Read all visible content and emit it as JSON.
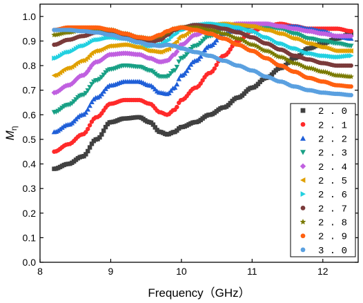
{
  "chart_data": {
    "type": "scatter",
    "title": "",
    "xlabel": "Frequency（GHz）",
    "ylabel_main": "M",
    "ylabel_sub": "η",
    "xlim": [
      8,
      12.5
    ],
    "ylim": [
      0,
      1.05
    ],
    "x_ticks": [
      "8",
      "9",
      "10",
      "11",
      "12"
    ],
    "y_ticks": [
      "0.0",
      "0.1",
      "0.2",
      "0.3",
      "0.4",
      "0.5",
      "0.6",
      "0.7",
      "0.8",
      "0.9",
      "1.0"
    ],
    "grid": false,
    "legend_position": "bottom-right",
    "series": [
      {
        "name": "2.0",
        "color": "#404040",
        "marker": "square",
        "points": [
          [
            8.2,
            0.38
          ],
          [
            8.4,
            0.4
          ],
          [
            8.6,
            0.43
          ],
          [
            8.8,
            0.5
          ],
          [
            9.0,
            0.57
          ],
          [
            9.2,
            0.585
          ],
          [
            9.4,
            0.59
          ],
          [
            9.55,
            0.57
          ],
          [
            9.7,
            0.53
          ],
          [
            9.8,
            0.52
          ],
          [
            9.9,
            0.53
          ],
          [
            10.0,
            0.55
          ],
          [
            10.2,
            0.57
          ],
          [
            10.4,
            0.6
          ],
          [
            10.6,
            0.63
          ],
          [
            10.8,
            0.67
          ],
          [
            11.0,
            0.71
          ],
          [
            11.2,
            0.75
          ],
          [
            11.4,
            0.79
          ],
          [
            11.6,
            0.83
          ],
          [
            11.8,
            0.87
          ],
          [
            12.0,
            0.89
          ],
          [
            12.2,
            0.91
          ],
          [
            12.4,
            0.93
          ]
        ]
      },
      {
        "name": "2.1",
        "color": "#ff2a2a",
        "marker": "circle",
        "points": [
          [
            8.2,
            0.45
          ],
          [
            8.4,
            0.48
          ],
          [
            8.6,
            0.52
          ],
          [
            8.8,
            0.59
          ],
          [
            9.0,
            0.645
          ],
          [
            9.2,
            0.66
          ],
          [
            9.4,
            0.66
          ],
          [
            9.55,
            0.645
          ],
          [
            9.7,
            0.61
          ],
          [
            9.8,
            0.6
          ],
          [
            9.9,
            0.62
          ],
          [
            10.0,
            0.66
          ],
          [
            10.2,
            0.71
          ],
          [
            10.4,
            0.77
          ],
          [
            10.6,
            0.84
          ],
          [
            10.8,
            0.9
          ],
          [
            11.0,
            0.94
          ],
          [
            11.2,
            0.96
          ],
          [
            11.4,
            0.97
          ],
          [
            11.6,
            0.96
          ],
          [
            11.8,
            0.95
          ],
          [
            12.0,
            0.95
          ],
          [
            12.2,
            0.95
          ],
          [
            12.4,
            0.94
          ]
        ]
      },
      {
        "name": "2.2",
        "color": "#1f5fd8",
        "marker": "triangle-up",
        "points": [
          [
            8.2,
            0.53
          ],
          [
            8.4,
            0.56
          ],
          [
            8.6,
            0.6
          ],
          [
            8.8,
            0.67
          ],
          [
            9.0,
            0.72
          ],
          [
            9.2,
            0.735
          ],
          [
            9.4,
            0.735
          ],
          [
            9.55,
            0.72
          ],
          [
            9.7,
            0.69
          ],
          [
            9.8,
            0.685
          ],
          [
            9.9,
            0.71
          ],
          [
            10.0,
            0.76
          ],
          [
            10.2,
            0.82
          ],
          [
            10.4,
            0.88
          ],
          [
            10.6,
            0.93
          ],
          [
            10.8,
            0.95
          ],
          [
            11.0,
            0.96
          ],
          [
            11.2,
            0.97
          ],
          [
            11.4,
            0.96
          ],
          [
            11.6,
            0.96
          ],
          [
            11.8,
            0.95
          ],
          [
            12.0,
            0.94
          ],
          [
            12.2,
            0.92
          ],
          [
            12.4,
            0.91
          ]
        ]
      },
      {
        "name": "2.3",
        "color": "#18a085",
        "marker": "triangle-down",
        "points": [
          [
            8.2,
            0.61
          ],
          [
            8.4,
            0.64
          ],
          [
            8.6,
            0.68
          ],
          [
            8.8,
            0.74
          ],
          [
            9.0,
            0.785
          ],
          [
            9.2,
            0.8
          ],
          [
            9.4,
            0.795
          ],
          [
            9.55,
            0.78
          ],
          [
            9.7,
            0.755
          ],
          [
            9.8,
            0.755
          ],
          [
            9.9,
            0.78
          ],
          [
            10.0,
            0.83
          ],
          [
            10.2,
            0.88
          ],
          [
            10.4,
            0.92
          ],
          [
            10.6,
            0.95
          ],
          [
            10.8,
            0.96
          ],
          [
            11.0,
            0.96
          ],
          [
            11.2,
            0.955
          ],
          [
            11.4,
            0.95
          ],
          [
            11.6,
            0.93
          ],
          [
            11.8,
            0.91
          ],
          [
            12.0,
            0.9
          ],
          [
            12.2,
            0.89
          ],
          [
            12.4,
            0.88
          ]
        ]
      },
      {
        "name": "2.4",
        "color": "#c060e0",
        "marker": "diamond",
        "points": [
          [
            8.2,
            0.69
          ],
          [
            8.4,
            0.72
          ],
          [
            8.6,
            0.76
          ],
          [
            8.8,
            0.815
          ],
          [
            9.0,
            0.845
          ],
          [
            9.2,
            0.85
          ],
          [
            9.4,
            0.845
          ],
          [
            9.55,
            0.83
          ],
          [
            9.7,
            0.815
          ],
          [
            9.8,
            0.82
          ],
          [
            9.9,
            0.845
          ],
          [
            10.0,
            0.885
          ],
          [
            10.2,
            0.925
          ],
          [
            10.4,
            0.95
          ],
          [
            10.6,
            0.96
          ],
          [
            10.8,
            0.97
          ],
          [
            11.0,
            0.97
          ],
          [
            11.2,
            0.97
          ],
          [
            11.4,
            0.96
          ],
          [
            11.6,
            0.95
          ],
          [
            11.8,
            0.94
          ],
          [
            12.0,
            0.93
          ],
          [
            12.2,
            0.92
          ],
          [
            12.4,
            0.92
          ]
        ]
      },
      {
        "name": "2.5",
        "color": "#e0a000",
        "marker": "triangle-left",
        "points": [
          [
            8.2,
            0.76
          ],
          [
            8.4,
            0.79
          ],
          [
            8.6,
            0.82
          ],
          [
            8.8,
            0.86
          ],
          [
            9.0,
            0.88
          ],
          [
            9.2,
            0.885
          ],
          [
            9.4,
            0.875
          ],
          [
            9.55,
            0.86
          ],
          [
            9.7,
            0.855
          ],
          [
            9.8,
            0.865
          ],
          [
            9.9,
            0.89
          ],
          [
            10.0,
            0.92
          ],
          [
            10.2,
            0.95
          ],
          [
            10.4,
            0.965
          ],
          [
            10.6,
            0.97
          ],
          [
            10.8,
            0.965
          ],
          [
            11.0,
            0.96
          ],
          [
            11.2,
            0.945
          ],
          [
            11.4,
            0.93
          ],
          [
            11.6,
            0.91
          ],
          [
            11.8,
            0.89
          ],
          [
            12.0,
            0.875
          ],
          [
            12.2,
            0.86
          ],
          [
            12.4,
            0.86
          ]
        ]
      },
      {
        "name": "2.6",
        "color": "#22d0e0",
        "marker": "triangle-right",
        "points": [
          [
            8.2,
            0.83
          ],
          [
            8.4,
            0.855
          ],
          [
            8.6,
            0.88
          ],
          [
            8.8,
            0.905
          ],
          [
            9.0,
            0.915
          ],
          [
            9.2,
            0.91
          ],
          [
            9.4,
            0.895
          ],
          [
            9.55,
            0.88
          ],
          [
            9.7,
            0.885
          ],
          [
            9.8,
            0.9
          ],
          [
            9.9,
            0.925
          ],
          [
            10.0,
            0.945
          ],
          [
            10.2,
            0.965
          ],
          [
            10.4,
            0.97
          ],
          [
            10.6,
            0.965
          ],
          [
            10.8,
            0.955
          ],
          [
            11.0,
            0.94
          ],
          [
            11.2,
            0.915
          ],
          [
            11.4,
            0.89
          ],
          [
            11.6,
            0.87
          ],
          [
            11.8,
            0.85
          ],
          [
            12.0,
            0.84
          ],
          [
            12.2,
            0.835
          ],
          [
            12.4,
            0.84
          ]
        ]
      },
      {
        "name": "2.7",
        "color": "#7a3a3a",
        "marker": "circle",
        "points": [
          [
            8.2,
            0.885
          ],
          [
            8.4,
            0.905
          ],
          [
            8.6,
            0.92
          ],
          [
            8.8,
            0.935
          ],
          [
            9.0,
            0.935
          ],
          [
            9.2,
            0.925
          ],
          [
            9.4,
            0.905
          ],
          [
            9.55,
            0.895
          ],
          [
            9.7,
            0.905
          ],
          [
            9.8,
            0.925
          ],
          [
            9.9,
            0.945
          ],
          [
            10.0,
            0.955
          ],
          [
            10.2,
            0.965
          ],
          [
            10.4,
            0.96
          ],
          [
            10.6,
            0.95
          ],
          [
            10.8,
            0.935
          ],
          [
            11.0,
            0.915
          ],
          [
            11.2,
            0.89
          ],
          [
            11.4,
            0.865
          ],
          [
            11.6,
            0.84
          ],
          [
            11.8,
            0.825
          ],
          [
            12.0,
            0.81
          ],
          [
            12.2,
            0.8
          ],
          [
            12.4,
            0.8
          ]
        ]
      },
      {
        "name": "2.8",
        "color": "#7a7a00",
        "marker": "star",
        "points": [
          [
            8.2,
            0.925
          ],
          [
            8.4,
            0.935
          ],
          [
            8.6,
            0.945
          ],
          [
            8.8,
            0.95
          ],
          [
            9.0,
            0.945
          ],
          [
            9.2,
            0.93
          ],
          [
            9.4,
            0.915
          ],
          [
            9.55,
            0.91
          ],
          [
            9.7,
            0.92
          ],
          [
            9.8,
            0.935
          ],
          [
            9.9,
            0.95
          ],
          [
            10.0,
            0.955
          ],
          [
            10.2,
            0.955
          ],
          [
            10.4,
            0.945
          ],
          [
            10.6,
            0.93
          ],
          [
            10.8,
            0.91
          ],
          [
            11.0,
            0.885
          ],
          [
            11.2,
            0.86
          ],
          [
            11.4,
            0.835
          ],
          [
            11.6,
            0.81
          ],
          [
            11.8,
            0.79
          ],
          [
            12.0,
            0.775
          ],
          [
            12.2,
            0.76
          ],
          [
            12.4,
            0.755
          ]
        ]
      },
      {
        "name": "2.9",
        "color": "#ff6010",
        "marker": "circle",
        "points": [
          [
            8.2,
            0.945
          ],
          [
            8.4,
            0.955
          ],
          [
            8.6,
            0.955
          ],
          [
            8.8,
            0.955
          ],
          [
            9.0,
            0.945
          ],
          [
            9.2,
            0.93
          ],
          [
            9.4,
            0.915
          ],
          [
            9.55,
            0.91
          ],
          [
            9.7,
            0.925
          ],
          [
            9.8,
            0.94
          ],
          [
            9.9,
            0.95
          ],
          [
            10.0,
            0.955
          ],
          [
            10.2,
            0.945
          ],
          [
            10.4,
            0.93
          ],
          [
            10.6,
            0.91
          ],
          [
            10.8,
            0.885
          ],
          [
            11.0,
            0.86
          ],
          [
            11.2,
            0.83
          ],
          [
            11.4,
            0.8
          ],
          [
            11.6,
            0.775
          ],
          [
            11.8,
            0.75
          ],
          [
            12.0,
            0.735
          ],
          [
            12.2,
            0.72
          ],
          [
            12.4,
            0.715
          ]
        ]
      },
      {
        "name": "3.0",
        "color": "#5aa0e0",
        "marker": "circle",
        "points": [
          [
            8.2,
            0.945
          ],
          [
            8.4,
            0.945
          ],
          [
            8.6,
            0.94
          ],
          [
            8.8,
            0.935
          ],
          [
            9.0,
            0.925
          ],
          [
            9.2,
            0.91
          ],
          [
            9.4,
            0.895
          ],
          [
            9.55,
            0.885
          ],
          [
            9.7,
            0.88
          ],
          [
            9.8,
            0.885
          ],
          [
            9.9,
            0.88
          ],
          [
            10.0,
            0.87
          ],
          [
            10.2,
            0.855
          ],
          [
            10.4,
            0.84
          ],
          [
            10.6,
            0.82
          ],
          [
            10.8,
            0.8
          ],
          [
            11.0,
            0.78
          ],
          [
            11.2,
            0.755
          ],
          [
            11.4,
            0.735
          ],
          [
            11.6,
            0.715
          ],
          [
            11.8,
            0.7
          ],
          [
            12.0,
            0.69
          ],
          [
            12.2,
            0.685
          ],
          [
            12.4,
            0.68
          ]
        ]
      }
    ]
  }
}
